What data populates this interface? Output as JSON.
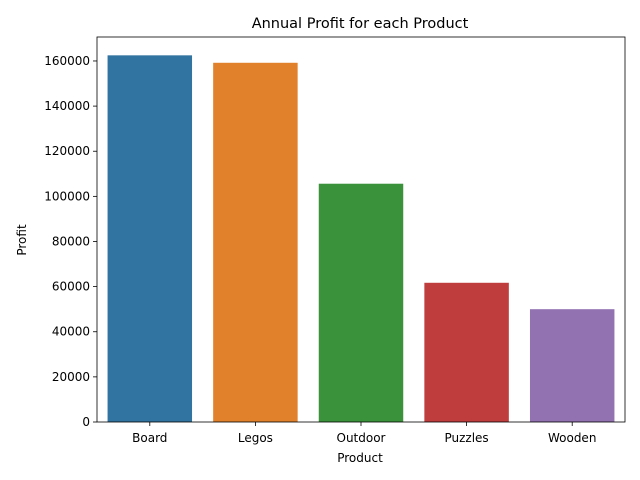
{
  "chart_data": {
    "type": "bar",
    "title": "Annual Profit for each Product",
    "xlabel": "Product",
    "ylabel": "Profit",
    "categories": [
      "Board",
      "Legos",
      "Outdoor",
      "Puzzles",
      "Wooden"
    ],
    "values": [
      162500,
      159200,
      105600,
      61700,
      50000
    ],
    "colors": [
      "#3274a1",
      "#e1812c",
      "#3a923a",
      "#c03d3e",
      "#9372b2"
    ],
    "ylim": [
      0,
      170625
    ],
    "yticks": [
      0,
      20000,
      40000,
      60000,
      80000,
      100000,
      120000,
      140000,
      160000
    ],
    "ytick_labels": [
      "0",
      "20000",
      "40000",
      "60000",
      "80000",
      "100000",
      "120000",
      "140000",
      "160000"
    ],
    "grid": false,
    "legend": "none"
  }
}
